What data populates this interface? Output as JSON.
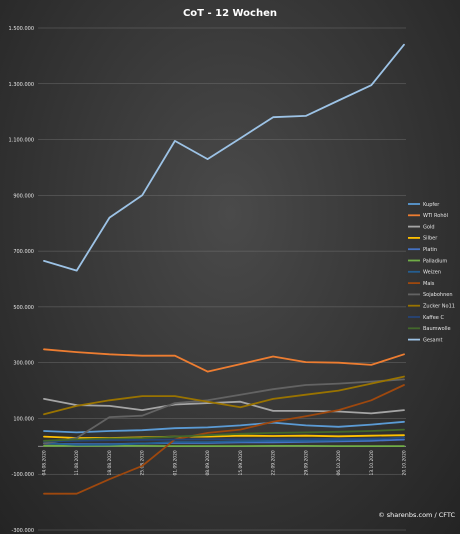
{
  "chart_data": {
    "type": "line",
    "title": "CoT - 12 Wochen",
    "x": [
      "04.08.2020",
      "11.08.2020",
      "18.08.2020",
      "25.08.2020",
      "01.09.2020",
      "08.09.2020",
      "15.09.2020",
      "22.09.2020",
      "29.09.2020",
      "06.10.2020",
      "13.10.2020",
      "20.10.2020"
    ],
    "yticks": [
      -300000,
      -100000,
      100000,
      300000,
      500000,
      700000,
      900000,
      1100000,
      1300000,
      1500000
    ],
    "ytick_labels": [
      "-300.000",
      "-100.000",
      "100.000",
      "300.000",
      "500.000",
      "700.000",
      "900.000",
      "1.100.000",
      "1.300.000",
      "1.500.000"
    ],
    "ylim": [
      -300000,
      1500000
    ],
    "grid": true,
    "legend_position": "right",
    "series": [
      {
        "name": "Kupfer",
        "color": "#5b9bd5",
        "values": [
          55000,
          50000,
          55000,
          58000,
          65000,
          68000,
          75000,
          85000,
          75000,
          70000,
          78000,
          88000
        ]
      },
      {
        "name": "WTI Rohöl",
        "color": "#ed7d31",
        "values": [
          348000,
          338000,
          330000,
          325000,
          325000,
          268000,
          295000,
          322000,
          302000,
          300000,
          292000,
          330000
        ]
      },
      {
        "name": "Gold",
        "color": "#a5a5a5",
        "values": [
          170000,
          148000,
          145000,
          130000,
          150000,
          155000,
          160000,
          127000,
          127000,
          125000,
          118000,
          130000
        ]
      },
      {
        "name": "Silber",
        "color": "#ffc000",
        "values": [
          35000,
          30000,
          30000,
          32000,
          35000,
          35000,
          38000,
          37000,
          38000,
          36000,
          38000,
          40000
        ]
      },
      {
        "name": "Platin",
        "color": "#4472c4",
        "values": [
          10000,
          8000,
          8000,
          10000,
          12000,
          12000,
          14000,
          14000,
          16000,
          18000,
          20000,
          24000
        ]
      },
      {
        "name": "Palladium",
        "color": "#70ad47",
        "values": [
          2000,
          2000,
          1500,
          1500,
          1000,
          1000,
          1000,
          1500,
          1500,
          1000,
          1000,
          1000
        ]
      },
      {
        "name": "Weizen",
        "color": "#255e91",
        "values": [
          12000,
          5000,
          6000,
          10000,
          15000,
          15000,
          18000,
          20000,
          20000,
          22000,
          25000,
          32000
        ]
      },
      {
        "name": "Mais",
        "color": "#9e480e",
        "values": [
          -170000,
          -170000,
          -118000,
          -70000,
          25000,
          48000,
          60000,
          88000,
          108000,
          130000,
          165000,
          220000
        ]
      },
      {
        "name": "Sojabohnen",
        "color": "#636363",
        "values": [
          10000,
          30000,
          105000,
          110000,
          155000,
          165000,
          185000,
          205000,
          220000,
          225000,
          232000,
          240000
        ]
      },
      {
        "name": "Zucker No11",
        "color": "#997300",
        "values": [
          115000,
          145000,
          165000,
          180000,
          180000,
          160000,
          140000,
          170000,
          185000,
          200000,
          225000,
          250000
        ]
      },
      {
        "name": "Kaffee C",
        "color": "#264478",
        "values": [
          18000,
          20000,
          22000,
          23000,
          24000,
          25000,
          25000,
          26000,
          26000,
          27000,
          28000,
          30000
        ]
      },
      {
        "name": "Baumwolle",
        "color": "#43682b",
        "values": [
          20000,
          25000,
          28000,
          30000,
          35000,
          40000,
          45000,
          48000,
          50000,
          52000,
          55000,
          60000
        ]
      },
      {
        "name": "Gesamt",
        "color": "#9dc3e6",
        "values": [
          665000,
          630000,
          820000,
          900000,
          1095000,
          1030000,
          1105000,
          1180000,
          1185000,
          1240000,
          1295000,
          1440000
        ]
      }
    ]
  },
  "credit": "© sharenbs.com / CFTC"
}
